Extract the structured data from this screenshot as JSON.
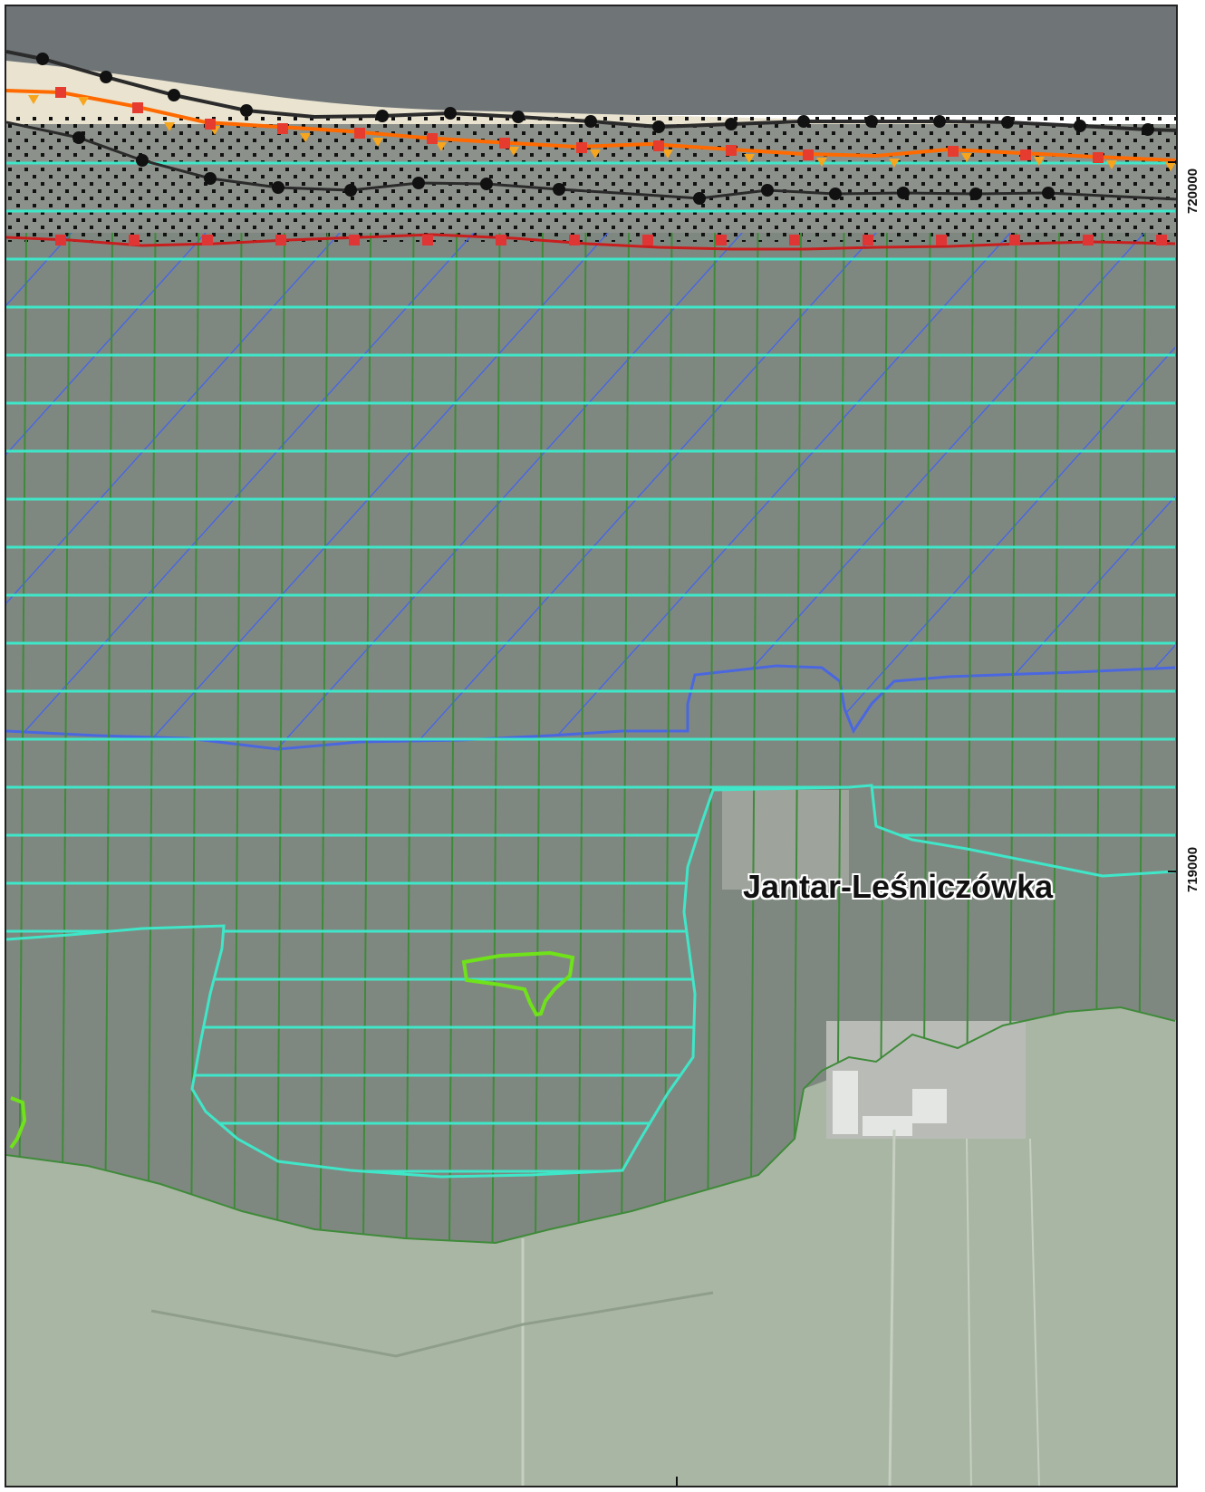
{
  "map": {
    "place_name": "Jantar-Leśniczówka",
    "grid_labels": {
      "northing_720000": "720000",
      "northing_719000": "719000"
    }
  },
  "colors": {
    "sea": "#6f7477",
    "beach": "#e9e3cf",
    "forest": "#7f8880",
    "field": "#a9b6a3",
    "cyan_hatch": "#3fe6c8",
    "green_lines": "#3f8a3a",
    "blue_hatch": "#4a67e0",
    "orange_line": "#ff6a00",
    "red_line": "#c81e1e",
    "lime_outline": "#6fe21a"
  }
}
